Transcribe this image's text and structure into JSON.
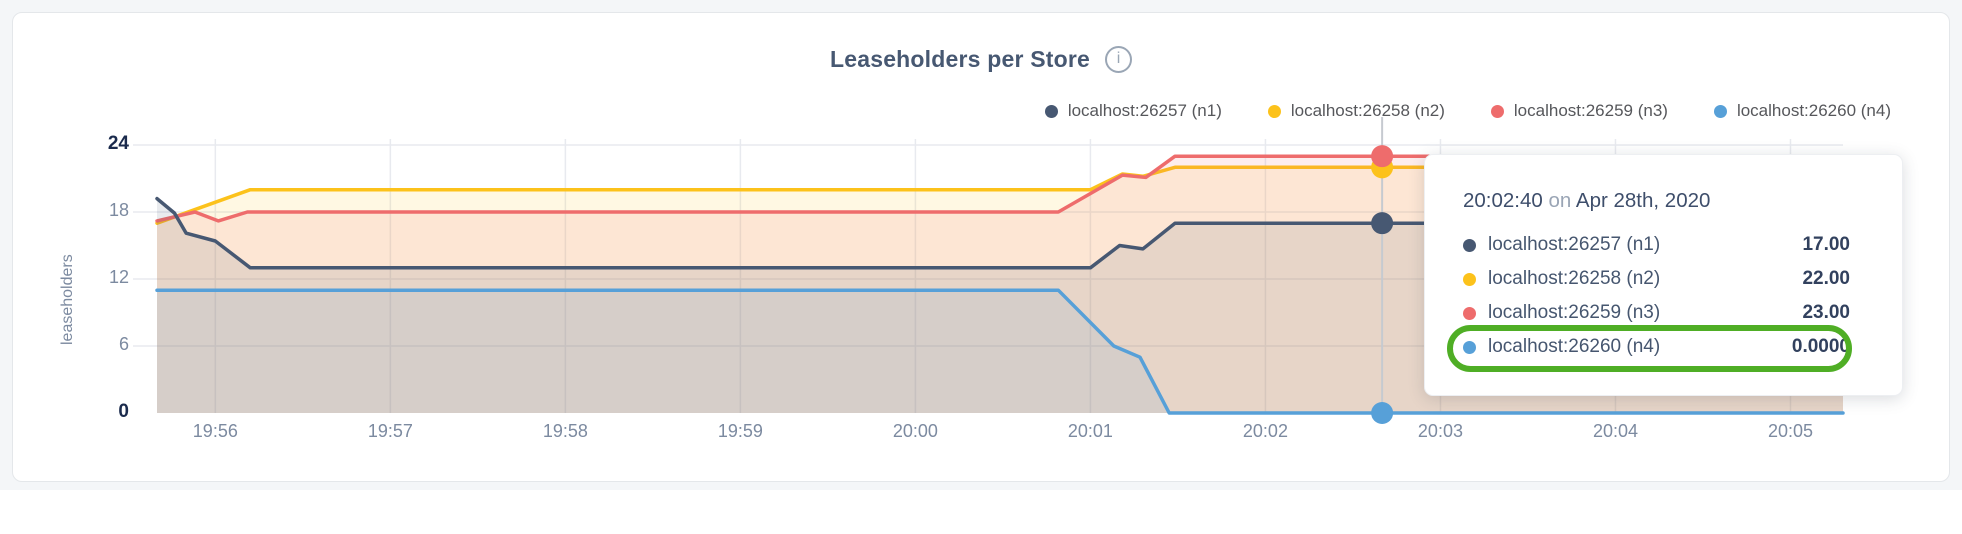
{
  "header": {
    "title": "Leaseholders per Store",
    "info_icon_glyph": "i"
  },
  "legend": [
    {
      "label": "localhost:26257 (n1)",
      "color": "#475872"
    },
    {
      "label": "localhost:26258 (n2)",
      "color": "#fcc21b"
    },
    {
      "label": "localhost:26259 (n3)",
      "color": "#ee6c6c"
    },
    {
      "label": "localhost:26260 (n4)",
      "color": "#57a0d8"
    }
  ],
  "chart_data": {
    "type": "area",
    "title": "Leaseholders per Store",
    "ylabel": "leaseholders",
    "ylim": [
      0,
      24
    ],
    "yticks": [
      0,
      6,
      12,
      18,
      24
    ],
    "ytick_emphasis": [
      0,
      24
    ],
    "xticks": [
      "19:56",
      "19:57",
      "19:58",
      "19:59",
      "20:00",
      "20:01",
      "20:02",
      "20:03",
      "20:04",
      "20:05"
    ],
    "x_start": "19:55:40",
    "x_end": "20:05:18",
    "grid": true,
    "legend_position": "top-right",
    "series": [
      {
        "name": "localhost:26258 (n2)",
        "color": "#fcc21b",
        "points": [
          [
            "19:55:40",
            17.0
          ],
          [
            "19:56:12",
            20
          ],
          [
            "20:01:00",
            20
          ],
          [
            "20:01:11",
            21.4
          ],
          [
            "20:01:18",
            21.2
          ],
          [
            "20:01:29",
            22
          ],
          [
            "20:05:18",
            22
          ]
        ]
      },
      {
        "name": "localhost:26259 (n3)",
        "color": "#ee6c6c",
        "points": [
          [
            "19:55:40",
            17.2
          ],
          [
            "19:55:53",
            18
          ],
          [
            "19:56:01",
            17.2
          ],
          [
            "19:56:11",
            18
          ],
          [
            "20:00:49",
            18
          ],
          [
            "20:01:11",
            21.3
          ],
          [
            "20:01:19",
            21.1
          ],
          [
            "20:01:29",
            23
          ],
          [
            "20:05:18",
            23
          ]
        ]
      },
      {
        "name": "localhost:26257 (n1)",
        "color": "#475872",
        "points": [
          [
            "19:55:40",
            19.2
          ],
          [
            "19:55:46",
            17.9
          ],
          [
            "19:55:50",
            16.1
          ],
          [
            "19:56:00",
            15.4
          ],
          [
            "19:56:12",
            13
          ],
          [
            "20:01:00",
            13
          ],
          [
            "20:01:10",
            15
          ],
          [
            "20:01:18",
            14.7
          ],
          [
            "20:01:29",
            17
          ],
          [
            "20:05:18",
            17
          ]
        ]
      },
      {
        "name": "localhost:26260 (n4)",
        "color": "#57a0d8",
        "points": [
          [
            "19:55:40",
            11
          ],
          [
            "20:00:49",
            11
          ],
          [
            "20:01:08",
            6
          ],
          [
            "20:01:17",
            5
          ],
          [
            "20:01:27",
            0
          ],
          [
            "20:05:18",
            0
          ]
        ]
      }
    ],
    "hover": {
      "time": "20:02:40",
      "dots": [
        {
          "color": "#fcc21b",
          "value": 22
        },
        {
          "color": "#ee6c6c",
          "value": 23
        },
        {
          "color": "#475872",
          "value": 17
        },
        {
          "color": "#57a0d8",
          "value": 0
        }
      ]
    }
  },
  "tooltip": {
    "time": "20:02:40",
    "conjunction": "on",
    "date": "Apr 28th, 2020",
    "rows": [
      {
        "label": "localhost:26257 (n1)",
        "value": "17.00",
        "color": "#475872",
        "highlighted": false
      },
      {
        "label": "localhost:26258 (n2)",
        "value": "22.00",
        "color": "#fcc21b",
        "highlighted": false
      },
      {
        "label": "localhost:26259 (n3)",
        "value": "23.00",
        "color": "#ee6c6c",
        "highlighted": false
      },
      {
        "label": "localhost:26260 (n4)",
        "value": "0.0000",
        "color": "#57a0d8",
        "highlighted": true
      }
    ],
    "highlight_color": "#4fae25"
  }
}
